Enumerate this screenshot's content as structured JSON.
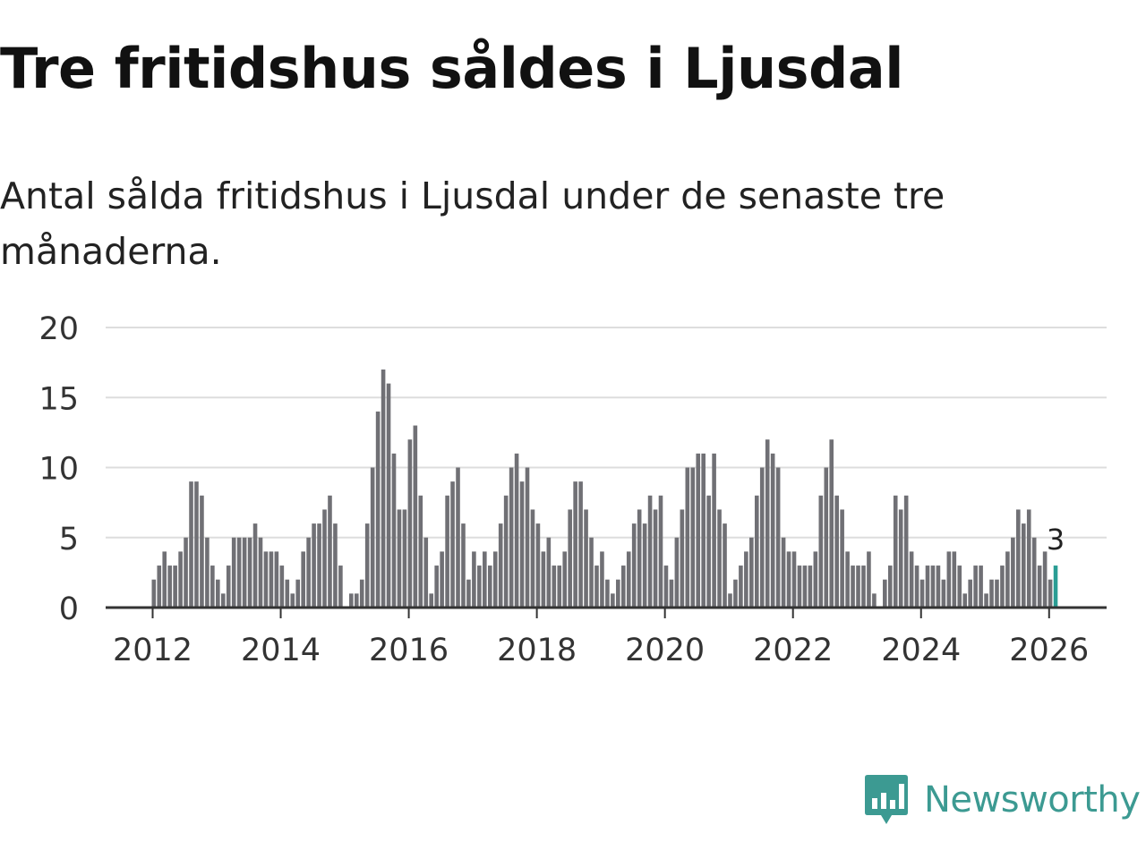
{
  "title": "Tre fritidshus såldes i Ljusdal",
  "subtitle": "Antal sålda fritidshus i Ljusdal under de senaste tre månaderna.",
  "brand": {
    "name": "Newsworthy"
  },
  "colors": {
    "bar": "#707075",
    "highlight": "#2a9d94",
    "grid": "#dddddd",
    "axis": "#333333",
    "text": "#333333",
    "brand": "#3c9a92"
  },
  "chart_data": {
    "type": "bar",
    "title": "Tre fritidshus såldes i Ljusdal",
    "xlabel": "",
    "ylabel": "",
    "ylim": [
      0,
      20
    ],
    "yticks": [
      0,
      5,
      10,
      15,
      20
    ],
    "xticks": [
      "2012",
      "2014",
      "2016",
      "2018",
      "2020",
      "2022",
      "2024",
      "2026"
    ],
    "start": "2012-01",
    "end": "2026-02",
    "values": [
      2,
      3,
      4,
      3,
      3,
      4,
      5,
      9,
      9,
      8,
      5,
      3,
      2,
      1,
      3,
      5,
      5,
      5,
      5,
      6,
      5,
      4,
      4,
      4,
      3,
      2,
      1,
      2,
      4,
      5,
      6,
      6,
      7,
      8,
      6,
      3,
      0,
      1,
      1,
      2,
      6,
      10,
      14,
      17,
      16,
      11,
      7,
      7,
      12,
      13,
      8,
      5,
      1,
      3,
      4,
      8,
      9,
      10,
      6,
      2,
      4,
      3,
      4,
      3,
      4,
      6,
      8,
      10,
      11,
      9,
      10,
      7,
      6,
      4,
      5,
      3,
      3,
      4,
      7,
      9,
      9,
      7,
      5,
      3,
      4,
      2,
      1,
      2,
      3,
      4,
      6,
      7,
      6,
      8,
      7,
      8,
      3,
      2,
      5,
      7,
      10,
      10,
      11,
      11,
      8,
      11,
      7,
      6,
      1,
      2,
      3,
      4,
      5,
      8,
      10,
      12,
      11,
      10,
      5,
      4,
      4,
      3,
      3,
      3,
      4,
      8,
      10,
      12,
      8,
      7,
      4,
      3,
      3,
      3,
      4,
      1,
      0,
      2,
      3,
      8,
      7,
      8,
      4,
      3,
      2,
      3,
      3,
      3,
      2,
      4,
      4,
      3,
      1,
      2,
      3,
      3,
      1,
      2,
      2,
      3,
      4,
      5,
      7,
      6,
      7,
      5,
      3,
      4,
      2,
      3
    ],
    "highlight_label": "3"
  }
}
